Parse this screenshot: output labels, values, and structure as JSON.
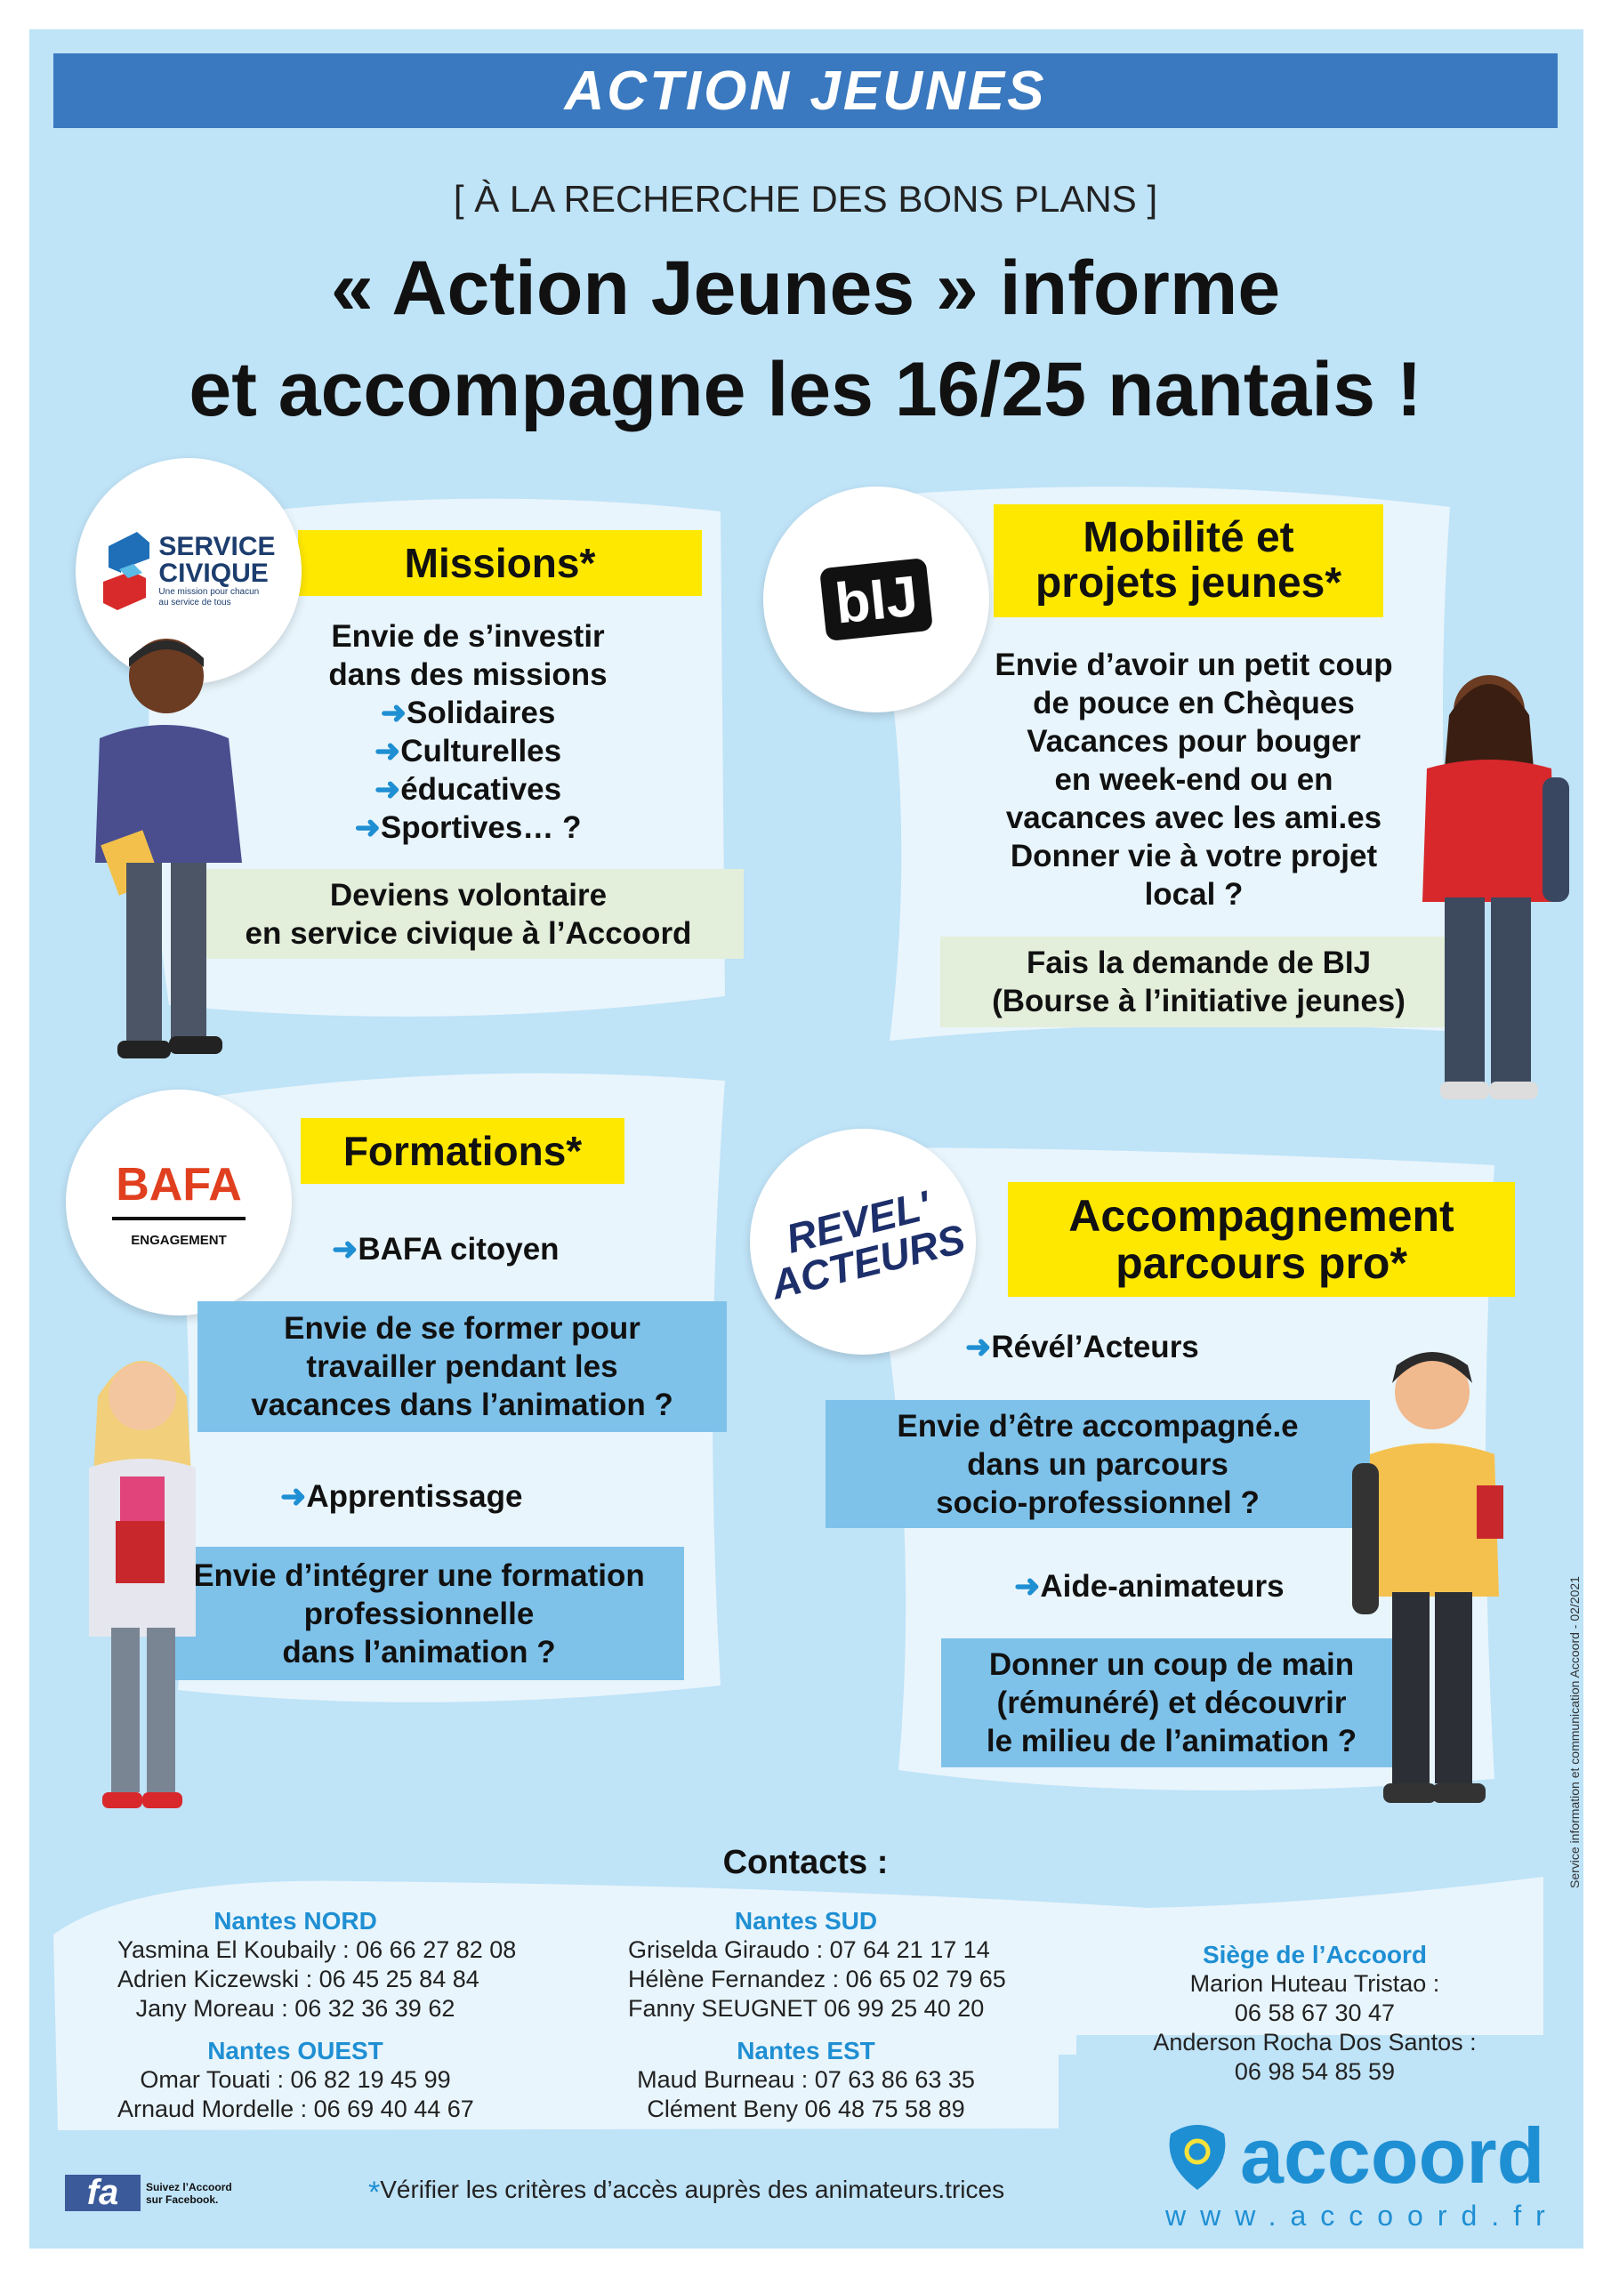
{
  "header": {
    "title": "ACTION JEUNES"
  },
  "subtitle": "[ À LA RECHERCHE DES BONS PLANS ]",
  "headline": {
    "line1": "« Action Jeunes » informe",
    "line2": "et accompagne les 16/25 nantais !"
  },
  "colors": {
    "header_blue": "#3a79bf",
    "background": "#bfe3f7",
    "yellow": "#ffe800",
    "accent_blue": "#1f8fd3",
    "box_blue": "#7ec2ea",
    "box_green": "#e3eedb"
  },
  "missions": {
    "logo": {
      "line1": "SERVICE",
      "line2": "CIVIQUE",
      "tagline1": "Une mission pour chacun",
      "tagline2": "au service de tous"
    },
    "title": "Missions*",
    "lines": [
      "Envie de s’investir",
      "dans des missions"
    ],
    "items": [
      "Solidaires",
      "Culturelles",
      "éducatives",
      "Sportives… ?"
    ],
    "cta": [
      "Deviens volontaire",
      "en service civique à l’Accoord"
    ]
  },
  "mobilite": {
    "logo": "bIJ",
    "title": [
      "Mobilité et",
      "projets jeunes*"
    ],
    "lines": [
      "Envie d’avoir un petit coup",
      "de pouce en Chèques",
      "Vacances pour bouger",
      "en week-end ou en",
      "vacances avec les ami.es",
      "Donner vie à votre projet",
      "local ?"
    ],
    "cta": [
      "Fais la demande de BIJ",
      "(Bourse à l’initiative jeunes)"
    ]
  },
  "formations": {
    "logo": {
      "name": "BAFA",
      "sub": "ENGAGEMENT"
    },
    "title": "Formations*",
    "item1": "BAFA citoyen",
    "box1": [
      "Envie de se former pour",
      "travailler pendant les",
      "vacances dans l’animation ?"
    ],
    "item2": "Apprentissage",
    "box2": [
      "Envie d’intégrer une formation",
      "professionnelle",
      "dans l’animation ?"
    ]
  },
  "accompagnement": {
    "logo": {
      "line1": "REVEL'",
      "line2": "ACTEURS"
    },
    "title": [
      "Accompagnement",
      "parcours pro*"
    ],
    "item1": "Révél’Acteurs",
    "box1": [
      "Envie d’être accompagné.e",
      "dans un parcours",
      "socio-professionnel ?"
    ],
    "item2": "Aide-animateurs",
    "box2": [
      "Donner un coup de main",
      "(rémunéré) et découvrir",
      "le milieu de l’animation ?"
    ]
  },
  "credit": "Service information et communication Accoord - 02/2021",
  "contacts": {
    "title": "Contacts :",
    "nord": {
      "name": "Nantes NORD",
      "people": [
        "Yasmina El Koubaily : 06 66 27 82 08",
        "Adrien Kiczewski : 06 45 25 84 84",
        "Jany Moreau : 06 32 36 39 62"
      ]
    },
    "ouest": {
      "name": "Nantes OUEST",
      "people": [
        "Omar Touati : 06 82 19 45 99",
        "Arnaud Mordelle : 06 69 40 44 67"
      ]
    },
    "sud": {
      "name": "Nantes SUD",
      "people": [
        "Griselda Giraudo : 07 64 21 17 14",
        "Hélène Fernandez : 06 65 02 79 65",
        "Fanny SEUGNET 06 99 25 40 20"
      ]
    },
    "est": {
      "name": "Nantes EST",
      "people": [
        "Maud Burneau : 07 63 86 63 35",
        "Clément Beny 06 48 75 58 89"
      ]
    },
    "siege": {
      "name": "Siège de l’Accoord",
      "people": [
        "Marion Huteau Tristao :",
        "06 58 67 30 47",
        "Anderson Rocha Dos Santos :",
        "06 98 54 85 59"
      ]
    }
  },
  "footer": {
    "facebook": {
      "icon": "fa",
      "line1": "Suivez l’Accoord",
      "line2": "sur Facebook."
    },
    "asterisk": "*",
    "note": "Vérifier les critères d’accès auprès des animateurs.trices",
    "brand": "accoord",
    "url": "www.accoord.fr"
  }
}
